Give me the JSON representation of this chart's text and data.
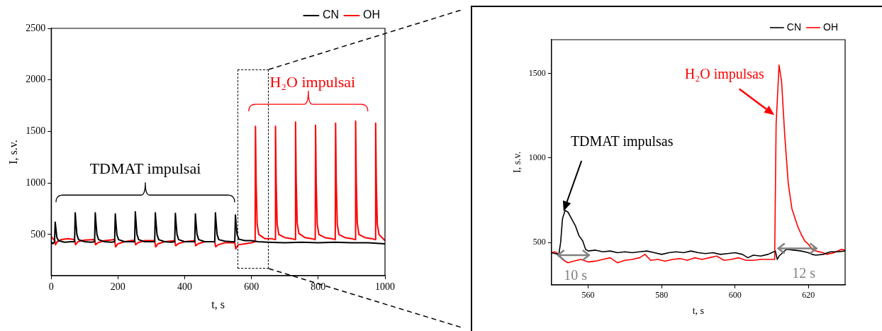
{
  "chart_data": [
    {
      "type": "line",
      "xlabel": "t, s",
      "ylabel": "I, s.v.",
      "xlim": [
        0,
        1000
      ],
      "xticks": [
        0,
        200,
        400,
        600,
        800,
        1000
      ],
      "ylim": [
        100,
        2500
      ],
      "yticks": [
        500,
        1000,
        1500,
        2000,
        2500
      ],
      "legend": "top right",
      "series": [
        {
          "name": "CN",
          "color": "#000000",
          "x": [
            0,
            5,
            10,
            12,
            14,
            17,
            22,
            40,
            60,
            70,
            72,
            74,
            77,
            82,
            100,
            120,
            130,
            132,
            134,
            137,
            142,
            160,
            180,
            190,
            192,
            194,
            197,
            202,
            220,
            240,
            250,
            252,
            254,
            257,
            262,
            280,
            300,
            310,
            312,
            314,
            317,
            322,
            340,
            360,
            370,
            372,
            374,
            377,
            382,
            400,
            420,
            430,
            432,
            434,
            437,
            442,
            460,
            480,
            490,
            492,
            494,
            497,
            502,
            520,
            540,
            550,
            552,
            554,
            557,
            562,
            580,
            600,
            620,
            650,
            700,
            750,
            800,
            850,
            900,
            950,
            1000
          ],
          "values": [
            430,
            410,
            430,
            620,
            560,
            470,
            440,
            425,
            430,
            430,
            710,
            620,
            500,
            450,
            430,
            425,
            430,
            710,
            620,
            500,
            450,
            430,
            425,
            430,
            700,
            610,
            495,
            450,
            430,
            430,
            430,
            720,
            630,
            500,
            450,
            430,
            430,
            430,
            710,
            620,
            500,
            450,
            430,
            425,
            430,
            705,
            615,
            500,
            450,
            430,
            430,
            430,
            700,
            610,
            500,
            450,
            430,
            430,
            430,
            710,
            620,
            500,
            450,
            435,
            430,
            430,
            690,
            600,
            500,
            455,
            440,
            440,
            430,
            425,
            420,
            425,
            420,
            425,
            420,
            420,
            410
          ]
        },
        {
          "name": "OH",
          "color": "#ff0000",
          "x": [
            0,
            5,
            11,
            13,
            18,
            30,
            50,
            70,
            73,
            80,
            100,
            130,
            133,
            140,
            160,
            190,
            193,
            200,
            220,
            250,
            253,
            260,
            280,
            310,
            313,
            320,
            340,
            370,
            373,
            380,
            400,
            430,
            433,
            440,
            460,
            490,
            493,
            500,
            520,
            550,
            553,
            560,
            580,
            600,
            611,
            612,
            614,
            617,
            622,
            640,
            660,
            671,
            672,
            674,
            677,
            682,
            700,
            720,
            731,
            732,
            734,
            737,
            742,
            760,
            780,
            791,
            792,
            794,
            797,
            802,
            820,
            840,
            851,
            852,
            854,
            857,
            862,
            880,
            900,
            911,
            912,
            914,
            917,
            922,
            940,
            960,
            971,
            972,
            974,
            977,
            982,
            1000
          ],
          "values": [
            480,
            460,
            440,
            400,
            430,
            450,
            460,
            450,
            400,
            430,
            445,
            450,
            400,
            420,
            440,
            450,
            380,
            410,
            430,
            445,
            400,
            420,
            440,
            440,
            380,
            410,
            430,
            440,
            390,
            410,
            430,
            440,
            390,
            410,
            430,
            430,
            380,
            400,
            420,
            420,
            360,
            400,
            410,
            420,
            430,
            1550,
            1000,
            600,
            500,
            460,
            460,
            450,
            1550,
            1000,
            600,
            500,
            470,
            460,
            450,
            1590,
            1020,
            610,
            510,
            470,
            460,
            450,
            1560,
            1000,
            600,
            500,
            470,
            460,
            450,
            1580,
            1010,
            600,
            500,
            470,
            460,
            450,
            1600,
            1020,
            610,
            500,
            470,
            460,
            450,
            1580,
            1010,
            600,
            500,
            440
          ]
        }
      ],
      "annotations": [
        "TDMAT impulsai",
        "H₂O impulsai"
      ]
    },
    {
      "type": "line",
      "xlabel": "t, s",
      "ylabel": "I, s.v.",
      "xlim": [
        550,
        630
      ],
      "xticks": [
        560,
        580,
        600,
        620
      ],
      "ylim": [
        250,
        1700
      ],
      "yticks": [
        500,
        1000,
        1500
      ],
      "legend": "top right",
      "series": [
        {
          "name": "CN",
          "color": "#000000",
          "x": [
            550,
            551,
            552,
            552.5,
            553,
            553.7,
            554.5,
            555.5,
            556.5,
            557.5,
            558.5,
            559.3,
            560,
            562,
            564,
            566,
            568,
            570,
            572,
            574,
            576,
            578,
            580,
            582,
            584,
            586,
            588,
            590,
            592,
            594,
            596,
            598,
            600,
            602,
            603.5,
            605,
            607,
            609,
            610,
            611,
            611.5,
            612,
            613,
            614,
            616,
            618,
            620,
            621,
            622,
            624,
            626,
            628,
            630
          ],
          "values": [
            440,
            435,
            430,
            500,
            640,
            690,
            680,
            640,
            600,
            540,
            510,
            460,
            450,
            455,
            445,
            450,
            440,
            445,
            440,
            445,
            450,
            440,
            430,
            440,
            445,
            440,
            450,
            440,
            435,
            440,
            430,
            435,
            440,
            430,
            410,
            425,
            420,
            430,
            440,
            450,
            400,
            420,
            440,
            460,
            455,
            450,
            440,
            430,
            425,
            430,
            445,
            445,
            450
          ]
        },
        {
          "name": "OH",
          "color": "#ff0000",
          "x": [
            550,
            551,
            552,
            553,
            554.5,
            556,
            558,
            560,
            562,
            564,
            566,
            568,
            570,
            572,
            574,
            575.5,
            577,
            579,
            581,
            583,
            585,
            587,
            589,
            591,
            593,
            595,
            597,
            599,
            601,
            603,
            605,
            607,
            609,
            610.8,
            611.2,
            612,
            612.7,
            613.5,
            614.5,
            615.5,
            617,
            618,
            619,
            620,
            621,
            622,
            624,
            625,
            627,
            629,
            630
          ],
          "values": [
            440,
            445,
            430,
            400,
            380,
            390,
            400,
            385,
            390,
            400,
            410,
            380,
            395,
            400,
            410,
            430,
            395,
            400,
            390,
            400,
            405,
            395,
            410,
            400,
            410,
            420,
            395,
            400,
            410,
            395,
            395,
            400,
            400,
            400,
            1200,
            1550,
            1450,
            1150,
            850,
            700,
            600,
            550,
            510,
            490,
            460,
            450,
            440,
            430,
            440,
            460,
            455
          ]
        }
      ],
      "annotations": [
        "TDMAT impulsas",
        "H₂O impulsas",
        "10 s",
        {
          "text": "12 s",
          "x": 617,
          "y": 465
        }
      ]
    }
  ]
}
